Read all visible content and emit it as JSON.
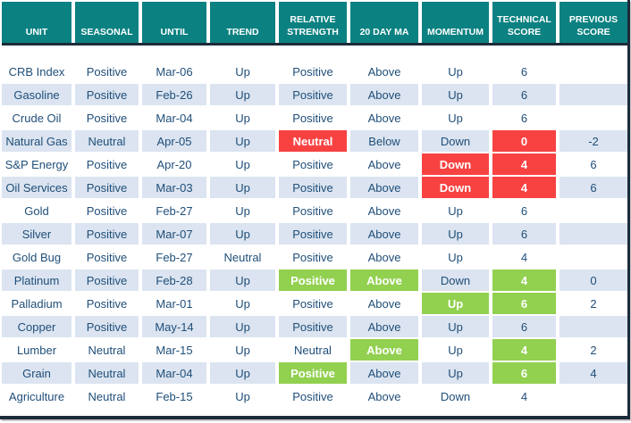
{
  "colors": {
    "header_background": "#0c8181",
    "stripe_background": "#dbe4f0",
    "negative_highlight": "#f84242",
    "positive_highlight": "#92d050",
    "text": "#1f4e79",
    "frame_border": "#1c2b3a"
  },
  "table": {
    "columns": [
      {
        "id": "unit",
        "label": "UNIT"
      },
      {
        "id": "seasonal",
        "label": "SEASONAL"
      },
      {
        "id": "until",
        "label": "UNTIL"
      },
      {
        "id": "trend",
        "label": "TREND"
      },
      {
        "id": "relative-strength",
        "label": "RELATIVE STRENGTH"
      },
      {
        "id": "20-day-ma",
        "label": "20 DAY MA"
      },
      {
        "id": "momentum",
        "label": "MOMENTUM"
      },
      {
        "id": "technical-score",
        "label": "TECHNICAL SCORE"
      },
      {
        "id": "previous-score",
        "label": "PREVIOUS SCORE"
      }
    ],
    "rows": [
      {
        "cells": [
          "CRB Index",
          "Positive",
          "Mar-06",
          "Up",
          "Positive",
          "Above",
          "Up",
          "6",
          ""
        ]
      },
      {
        "cells": [
          "Gasoline",
          "Positive",
          "Feb-26",
          "Up",
          "Positive",
          "Above",
          "Up",
          "6",
          ""
        ]
      },
      {
        "cells": [
          "Crude Oil",
          "Positive",
          "Mar-04",
          "Up",
          "Positive",
          "Above",
          "Up",
          "6",
          ""
        ]
      },
      {
        "cells": [
          "Natural Gas",
          "Neutral",
          "Apr-05",
          "Up",
          {
            "text": "Neutral",
            "highlight": "red"
          },
          "Below",
          "Down",
          {
            "text": "0",
            "highlight": "red"
          },
          "-2"
        ]
      },
      {
        "cells": [
          "S&P Energy",
          "Positive",
          "Apr-20",
          "Up",
          "Positive",
          "Above",
          {
            "text": "Down",
            "highlight": "red"
          },
          {
            "text": "4",
            "highlight": "red"
          },
          "6"
        ]
      },
      {
        "cells": [
          "Oil Services",
          "Positive",
          "Mar-03",
          "Up",
          "Positive",
          "Above",
          {
            "text": "Down",
            "highlight": "red"
          },
          {
            "text": "4",
            "highlight": "red"
          },
          "6"
        ]
      },
      {
        "cells": [
          "Gold",
          "Positive",
          "Feb-27",
          "Up",
          "Positive",
          "Above",
          "Up",
          "6",
          ""
        ]
      },
      {
        "cells": [
          "Silver",
          "Positive",
          "Mar-07",
          "Up",
          "Positive",
          "Above",
          "Up",
          "6",
          ""
        ]
      },
      {
        "cells": [
          "Gold Bug",
          "Positive",
          "Feb-27",
          "Neutral",
          "Positive",
          "Above",
          "Up",
          "4",
          ""
        ]
      },
      {
        "cells": [
          "Platinum",
          "Positive",
          "Feb-28",
          "Up",
          {
            "text": "Positive",
            "highlight": "green"
          },
          {
            "text": "Above",
            "highlight": "green"
          },
          "Down",
          {
            "text": "4",
            "highlight": "green"
          },
          "0"
        ]
      },
      {
        "cells": [
          "Palladium",
          "Positive",
          "Mar-01",
          "Up",
          "Positive",
          "Above",
          {
            "text": "Up",
            "highlight": "green"
          },
          {
            "text": "6",
            "highlight": "green"
          },
          "2"
        ]
      },
      {
        "cells": [
          "Copper",
          "Positive",
          "May-14",
          "Up",
          "Positive",
          "Above",
          "Up",
          "6",
          ""
        ]
      },
      {
        "cells": [
          "Lumber",
          "Neutral",
          "Mar-15",
          "Up",
          "Neutral",
          {
            "text": "Above",
            "highlight": "green"
          },
          "Up",
          {
            "text": "4",
            "highlight": "green"
          },
          "2"
        ]
      },
      {
        "cells": [
          "Grain",
          "Neutral",
          "Mar-04",
          "Up",
          {
            "text": "Positive",
            "highlight": "green"
          },
          "Above",
          "Up",
          {
            "text": "6",
            "highlight": "green"
          },
          "4"
        ]
      },
      {
        "cells": [
          "Agriculture",
          "Neutral",
          "Feb-15",
          "Up",
          "Positive",
          "Above",
          "Down",
          "4",
          ""
        ]
      }
    ]
  }
}
